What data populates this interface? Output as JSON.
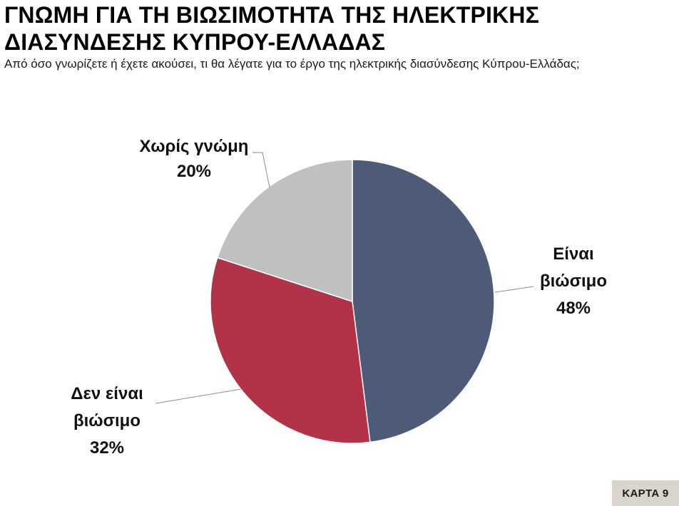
{
  "header": {
    "title_line1": "ΓΝΩΜΗ ΓΙΑ ΤΗ ΒΙΩΣΙΜΟΤΗΤΑ ΤΗΣ ΗΛΕΚΤΡΙΚΗΣ",
    "title_line2": "ΔΙΑΣΥΝΔΕΣΗΣ ΚΥΠΡΟΥ-ΕΛΛΑΔΑΣ",
    "subtitle": "Από όσο γνωρίζετε ή έχετε ακούσει, τι θα λέγατε για το έργο της ηλεκτρικής διασύνδεσης Κύπρου-Ελλάδας;"
  },
  "badge": {
    "label": "ΚΑΡΤΑ 9"
  },
  "chart_data": {
    "type": "pie",
    "title": "",
    "start_angle_deg": 0,
    "direction": "clockwise",
    "slices": [
      {
        "label": "Είναι βιώσιμο",
        "label_lines": [
          "Είναι",
          "βιώσιμο",
          "48%"
        ],
        "value": 48,
        "value_label": "48%",
        "color": "#4e5b78"
      },
      {
        "label": "Δεν είναι βιώσιμο",
        "label_lines": [
          "Δεν είναι",
          "βιώσιμο",
          "32%"
        ],
        "value": 32,
        "value_label": "32%",
        "color": "#b23348"
      },
      {
        "label": "Χωρίς γνώμη",
        "label_lines": [
          "Χωρίς γνώμη",
          "20%"
        ],
        "value": 20,
        "value_label": "20%",
        "color": "#c0c0c0"
      }
    ],
    "legend": "none",
    "data_labels": "outside-with-leader-lines"
  }
}
